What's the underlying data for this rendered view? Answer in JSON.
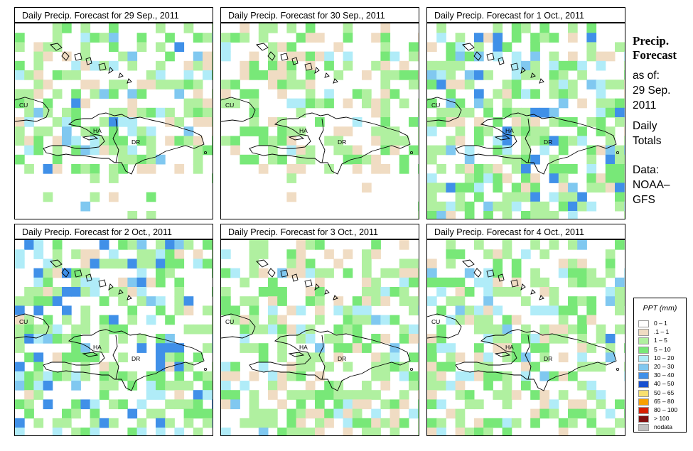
{
  "panels": [
    {
      "title": "Daily Precip. Forecast for  29 Sep., 2011",
      "seed": 11,
      "dry": 0.46,
      "bias": 0.0,
      "bottom_white": true
    },
    {
      "title": "Daily Precip. Forecast for  30 Sep., 2011",
      "seed": 23,
      "dry": 0.52,
      "bias": -0.1,
      "bottom_white": true
    },
    {
      "title": "Daily Precip. Forecast for  1 Oct., 2011",
      "seed": 37,
      "dry": 0.4,
      "bias": 0.05,
      "bottom_white": false
    },
    {
      "title": "Daily Precip. Forecast for  2 Oct., 2011",
      "seed": 41,
      "dry": 0.4,
      "bias": 0.1,
      "bottom_white": false
    },
    {
      "title": "Daily Precip. Forecast for  3 Oct., 2011",
      "seed": 53,
      "dry": 0.46,
      "bias": -0.05,
      "bottom_white": false
    },
    {
      "title": "Daily Precip. Forecast for  4 Oct., 2011",
      "seed": 67,
      "dry": 0.46,
      "bias": 0.0,
      "bottom_white": false
    }
  ],
  "map_labels": {
    "cu": "CU",
    "ha": "HA",
    "dr": "DR"
  },
  "sidebar": {
    "title_line1": "Precip.",
    "title_line2": "Forecast",
    "asof_label": "as of:",
    "date_line1": "29 Sep.",
    "date_line2": "2011",
    "totals_line1": "Daily",
    "totals_line2": "Totals",
    "source_line1": "Data:",
    "source_line2": "NOAA–",
    "source_line3": "GFS"
  },
  "legend": {
    "title": "PPT (mm)",
    "items": [
      {
        "label": "0 – 1",
        "color": "#ffffff"
      },
      {
        "label": ".1 – 1",
        "color": "#f0dcc3"
      },
      {
        "label": "1 – 5",
        "color": "#b0f0a0"
      },
      {
        "label": "5 – 10",
        "color": "#78e878"
      },
      {
        "label": "10 – 20",
        "color": "#b0ecf8"
      },
      {
        "label": "20 – 30",
        "color": "#80c8f0"
      },
      {
        "label": "30 – 40",
        "color": "#4090e8"
      },
      {
        "label": "40 – 50",
        "color": "#1850d0"
      },
      {
        "label": "50 – 65",
        "color": "#f8e070"
      },
      {
        "label": "65 – 80",
        "color": "#f8a000"
      },
      {
        "label": "80 – 100",
        "color": "#d82000"
      },
      {
        "label": "> 100",
        "color": "#801010"
      },
      {
        "label": "nodata",
        "color": "#c0c0c0"
      }
    ]
  }
}
